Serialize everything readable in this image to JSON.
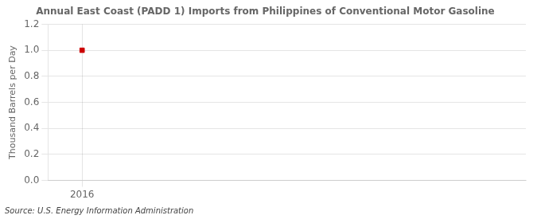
{
  "chart_data": {
    "type": "scatter",
    "title": "Annual East Coast (PADD 1) Imports from Philippines of Conventional Motor Gasoline",
    "ylabel": "Thousand Barrels per Day",
    "source": "Source: U.S. Energy Information Administration",
    "x": [
      2016
    ],
    "values": [
      1.0
    ],
    "color": "#cc0000",
    "marker": "square",
    "xlim": [
      2015.5,
      2022.5
    ],
    "xticks": [
      2016
    ],
    "ylim": [
      0.0,
      1.2
    ],
    "yticks": [
      {
        "value": 0.0,
        "label": "0.0"
      },
      0.2,
      0.4,
      0.6,
      0.8,
      {
        "value": 1.0,
        "label": "1.0"
      },
      1.2
    ],
    "grid": true
  }
}
